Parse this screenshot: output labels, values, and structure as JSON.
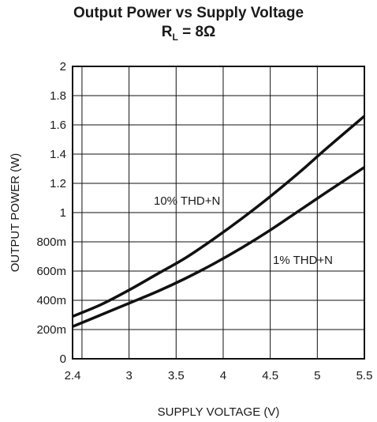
{
  "chart_data": {
    "type": "line",
    "title_line1": "Output Power vs Supply Voltage",
    "title_line2_main": "R",
    "title_line2_sub": "L",
    "title_line2_rest": " = 8Ω",
    "xlabel": "SUPPLY VOLTAGE (V)",
    "ylabel": "OUTPUT POWER (W)",
    "xlim": [
      2.4,
      5.5
    ],
    "ylim": [
      0,
      2
    ],
    "x_ticks": [
      {
        "value": 2.4,
        "label": "2.4"
      },
      {
        "value": 3.0,
        "label": "3"
      },
      {
        "value": 3.5,
        "label": "3.5"
      },
      {
        "value": 4.0,
        "label": "4"
      },
      {
        "value": 4.5,
        "label": "4.5"
      },
      {
        "value": 5.0,
        "label": "5"
      },
      {
        "value": 5.5,
        "label": "5.5"
      }
    ],
    "y_ticks": [
      {
        "value": 0,
        "label": "0"
      },
      {
        "value": 0.2,
        "label": "200m"
      },
      {
        "value": 0.4,
        "label": "400m"
      },
      {
        "value": 0.6,
        "label": "600m"
      },
      {
        "value": 0.8,
        "label": "800m"
      },
      {
        "value": 1.0,
        "label": "1"
      },
      {
        "value": 1.2,
        "label": "1.2"
      },
      {
        "value": 1.4,
        "label": "1.4"
      },
      {
        "value": 1.6,
        "label": "1.6"
      },
      {
        "value": 1.8,
        "label": "1.8"
      },
      {
        "value": 2.0,
        "label": "2"
      }
    ],
    "x_gridlines": [
      2.5,
      3.0,
      3.5,
      4.0,
      4.5,
      5.0
    ],
    "grid": true,
    "series": [
      {
        "name": "10% THD+N",
        "x": [
          2.4,
          2.7,
          3.0,
          3.3,
          3.6,
          3.9,
          4.2,
          4.5,
          4.8,
          5.1,
          5.5
        ],
        "values": [
          0.29,
          0.37,
          0.47,
          0.58,
          0.69,
          0.82,
          0.96,
          1.11,
          1.27,
          1.44,
          1.66
        ]
      },
      {
        "name": "1% THD+N",
        "x": [
          2.4,
          2.7,
          3.0,
          3.3,
          3.6,
          3.9,
          4.2,
          4.5,
          4.8,
          5.1,
          5.5
        ],
        "values": [
          0.22,
          0.3,
          0.38,
          0.46,
          0.55,
          0.65,
          0.76,
          0.88,
          1.01,
          1.14,
          1.31
        ]
      }
    ],
    "color": "#111111"
  }
}
